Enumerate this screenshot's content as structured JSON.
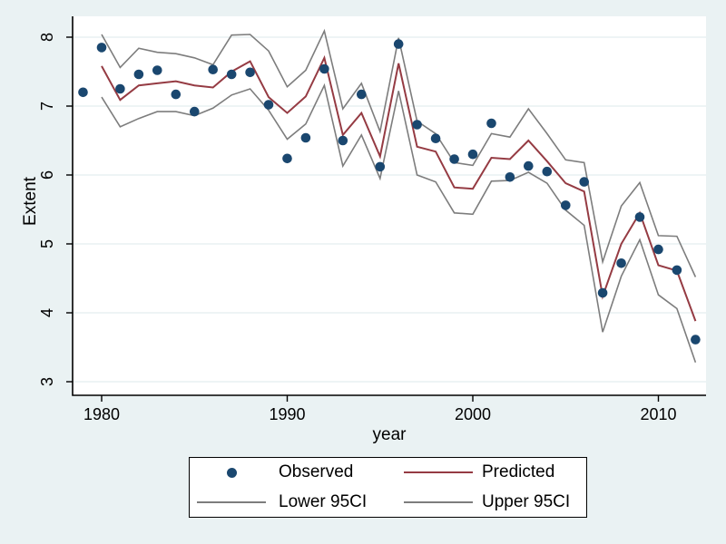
{
  "figure": {
    "background_color": "#eaf2f3",
    "plot_background": "#ffffff",
    "grid_color": "#e8f0f2",
    "axis_color": "#000000",
    "text_color": "#000000"
  },
  "chart_data": {
    "type": "scatter",
    "title": "",
    "xlabel": "year",
    "ylabel": "Extent",
    "grid": true,
    "x_ticks": [
      1980,
      1990,
      2000,
      2010
    ],
    "y_ticks": [
      3,
      4,
      5,
      6,
      7,
      8
    ],
    "xlim": [
      1978.4,
      2012.6
    ],
    "ylim": [
      2.8,
      8.3
    ],
    "series": [
      {
        "name": "Observed",
        "type": "scatter",
        "color": "#1a476f",
        "years": [
          1979,
          1980,
          1981,
          1982,
          1983,
          1984,
          1985,
          1986,
          1987,
          1988,
          1989,
          1990,
          1991,
          1992,
          1993,
          1994,
          1995,
          1996,
          1997,
          1998,
          1999,
          2000,
          2001,
          2002,
          2003,
          2004,
          2005,
          2006,
          2007,
          2008,
          2009,
          2010,
          2011,
          2012
        ],
        "values": [
          7.2,
          7.85,
          7.25,
          7.46,
          7.52,
          7.17,
          6.92,
          7.53,
          7.46,
          7.49,
          7.02,
          6.24,
          6.54,
          7.54,
          6.5,
          7.17,
          6.12,
          7.9,
          6.73,
          6.53,
          6.23,
          6.3,
          6.75,
          5.97,
          6.13,
          6.05,
          5.56,
          5.9,
          4.29,
          4.72,
          5.39,
          4.92,
          4.62,
          3.61
        ]
      },
      {
        "name": "Predicted",
        "type": "line",
        "color": "#953b43",
        "years": [
          1980,
          1981,
          1982,
          1983,
          1984,
          1985,
          1986,
          1987,
          1988,
          1989,
          1990,
          1991,
          1992,
          1993,
          1994,
          1995,
          1996,
          1997,
          1998,
          1999,
          2000,
          2001,
          2002,
          2003,
          2004,
          2005,
          2006,
          2007,
          2008,
          2009,
          2010,
          2011,
          2012
        ],
        "values": [
          7.58,
          7.09,
          7.3,
          7.33,
          7.36,
          7.3,
          7.27,
          7.5,
          7.65,
          7.13,
          6.9,
          7.14,
          7.7,
          6.58,
          6.9,
          6.27,
          7.62,
          6.41,
          6.34,
          5.82,
          5.8,
          6.25,
          6.23,
          6.5,
          6.2,
          5.88,
          5.76,
          4.24,
          5.0,
          5.45,
          4.69,
          4.61,
          3.88
        ]
      },
      {
        "name": "Lower 95CI",
        "type": "line",
        "color": "#7d7d7d",
        "years": [
          1980,
          1981,
          1982,
          1983,
          1984,
          1985,
          1986,
          1987,
          1988,
          1989,
          1990,
          1991,
          1992,
          1993,
          1994,
          1995,
          1996,
          1997,
          1998,
          1999,
          2000,
          2001,
          2002,
          2003,
          2004,
          2005,
          2006,
          2007,
          2008,
          2009,
          2010,
          2011,
          2012
        ],
        "values": [
          7.13,
          6.7,
          6.82,
          6.92,
          6.92,
          6.86,
          6.97,
          7.16,
          7.25,
          6.94,
          6.52,
          6.74,
          7.3,
          6.13,
          6.58,
          5.95,
          7.22,
          6.0,
          5.9,
          5.45,
          5.43,
          5.91,
          5.92,
          6.04,
          5.88,
          5.49,
          5.27,
          3.72,
          4.53,
          5.06,
          4.26,
          4.06,
          3.28
        ]
      },
      {
        "name": "Upper 95CI",
        "type": "line",
        "color": "#7d7d7d",
        "years": [
          1980,
          1981,
          1982,
          1983,
          1984,
          1985,
          1986,
          1987,
          1988,
          1989,
          1990,
          1991,
          1992,
          1993,
          1994,
          1995,
          1996,
          1997,
          1998,
          1999,
          2000,
          2001,
          2002,
          2003,
          2004,
          2005,
          2006,
          2007,
          2008,
          2009,
          2010,
          2011,
          2012
        ],
        "values": [
          8.04,
          7.56,
          7.84,
          7.78,
          7.76,
          7.7,
          7.6,
          8.03,
          8.04,
          7.8,
          7.28,
          7.52,
          8.09,
          6.96,
          7.33,
          6.63,
          7.99,
          6.78,
          6.6,
          6.18,
          6.14,
          6.6,
          6.55,
          6.96,
          6.6,
          6.22,
          6.18,
          4.74,
          5.55,
          5.89,
          5.12,
          5.11,
          4.52
        ]
      }
    ],
    "legend": {
      "position": "bottom",
      "entries": [
        {
          "label": "Observed",
          "marker": "dot",
          "color": "#1a476f"
        },
        {
          "label": "Predicted",
          "marker": "line",
          "color": "#953b43"
        },
        {
          "label": "Lower 95CI",
          "marker": "line",
          "color": "#7d7d7d"
        },
        {
          "label": "Upper 95CI",
          "marker": "line",
          "color": "#7d7d7d"
        }
      ]
    }
  }
}
